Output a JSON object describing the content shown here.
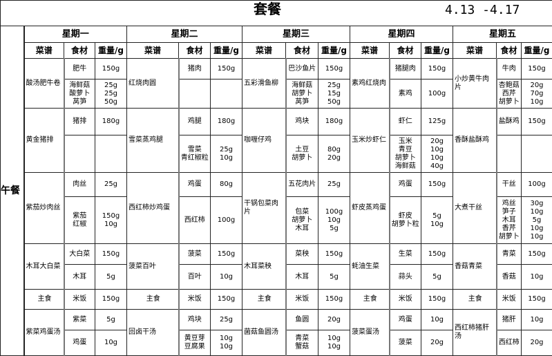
{
  "title": "套餐",
  "date_range": "4.13 -4.17",
  "meal": "午餐",
  "column_headers": {
    "dish": "菜谱",
    "ingredient": "食材",
    "weight": "重量/g"
  },
  "days": [
    {
      "name": "星期一",
      "dishes": [
        {
          "name": "酸汤肥牛卷",
          "items": [
            {
              "ingredient": "肥牛",
              "weight": "150g"
            },
            {
              "ingredient": "海鲜菇\n酸萝卜\n莴笋",
              "weight": "25g\n25g\n50g"
            }
          ]
        },
        {
          "name": "黄金猪排",
          "items": [
            {
              "ingredient": "猪排",
              "weight": "180g"
            },
            {
              "ingredient": "",
              "weight": ""
            }
          ]
        },
        {
          "name": "紫茄炒肉丝",
          "items": [
            {
              "ingredient": "肉丝",
              "weight": "25g"
            },
            {
              "ingredient": "紫茄\n红椒",
              "weight": "150g\n10g"
            }
          ]
        },
        {
          "name": "木耳大白菜",
          "items": [
            {
              "ingredient": "大白菜",
              "weight": "150g"
            },
            {
              "ingredient": "木耳",
              "weight": "5g"
            }
          ]
        },
        {
          "name": "主食",
          "items": [
            {
              "ingredient": "米饭",
              "weight": "150g"
            }
          ]
        },
        {
          "name": "紫菜鸡蛋汤",
          "items": [
            {
              "ingredient": "紫菜",
              "weight": "5g"
            },
            {
              "ingredient": "鸡蛋",
              "weight": "10g"
            }
          ]
        }
      ]
    },
    {
      "name": "星期二",
      "dishes": [
        {
          "name": "红烧肉圆",
          "items": [
            {
              "ingredient": "猪肉",
              "weight": "150g"
            },
            {
              "ingredient": "",
              "weight": ""
            }
          ]
        },
        {
          "name": "雪菜蒸鸡腿",
          "items": [
            {
              "ingredient": "鸡腿",
              "weight": "180g"
            },
            {
              "ingredient": "雪菜\n青红椒粒",
              "weight": "25g\n10g"
            }
          ]
        },
        {
          "name": "西红柿炒鸡蛋",
          "items": [
            {
              "ingredient": "鸡蛋",
              "weight": "80g"
            },
            {
              "ingredient": "西红柿",
              "weight": "100g"
            }
          ]
        },
        {
          "name": "菠菜百叶",
          "items": [
            {
              "ingredient": "菠菜",
              "weight": "150g"
            },
            {
              "ingredient": "百叶",
              "weight": "10g"
            }
          ]
        },
        {
          "name": "主食",
          "items": [
            {
              "ingredient": "米饭",
              "weight": "150g"
            }
          ]
        },
        {
          "name": "回卤干汤",
          "items": [
            {
              "ingredient": "鸡块",
              "weight": "25g"
            },
            {
              "ingredient": "黄豆芽\n豆腐果",
              "weight": "10g\n10g"
            }
          ]
        }
      ]
    },
    {
      "name": "星期三",
      "dishes": [
        {
          "name": "五彩滑鱼柳",
          "items": [
            {
              "ingredient": "巴沙鱼片",
              "weight": "150g"
            },
            {
              "ingredient": "海鲜菇\n胡萝卜\n莴笋",
              "weight": "25g\n15g\n50g"
            }
          ]
        },
        {
          "name": "咖喱仔鸡",
          "items": [
            {
              "ingredient": "鸡块",
              "weight": "180g"
            },
            {
              "ingredient": "土豆\n胡萝卜",
              "weight": "80g\n20g"
            }
          ]
        },
        {
          "name": "干锅包菜肉片",
          "items": [
            {
              "ingredient": "五花肉片",
              "weight": "25g"
            },
            {
              "ingredient": "包菜\n胡萝卜\n木耳",
              "weight": "100g\n10g\n5g"
            }
          ]
        },
        {
          "name": "木耳菜秧",
          "items": [
            {
              "ingredient": "菜秧",
              "weight": "150g"
            },
            {
              "ingredient": "木耳",
              "weight": "5g"
            }
          ]
        },
        {
          "name": "主食",
          "items": [
            {
              "ingredient": "米饭",
              "weight": "150g"
            }
          ]
        },
        {
          "name": "菌菇鱼圆汤",
          "items": [
            {
              "ingredient": "鱼圆",
              "weight": "20g"
            },
            {
              "ingredient": "青菜\n蟹菇",
              "weight": "10g\n10g"
            }
          ]
        }
      ]
    },
    {
      "name": "星期四",
      "dishes": [
        {
          "name": "素鸡红烧肉",
          "items": [
            {
              "ingredient": "猪腿肉",
              "weight": "150g"
            },
            {
              "ingredient": "素鸡",
              "weight": "100g"
            }
          ]
        },
        {
          "name": "玉米炒虾仁",
          "items": [
            {
              "ingredient": "虾仁",
              "weight": "125g"
            },
            {
              "ingredient": "玉米\n青豆\n胡萝卜\n海鲜菇",
              "weight": "20g\n10g\n10g\n40g"
            }
          ]
        },
        {
          "name": "虾皮蒸鸡蛋",
          "items": [
            {
              "ingredient": "鸡蛋",
              "weight": "150g"
            },
            {
              "ingredient": "虾皮\n胡萝卜粒",
              "weight": "5g\n10g"
            }
          ]
        },
        {
          "name": "蚝油生菜",
          "items": [
            {
              "ingredient": "生菜",
              "weight": "150g"
            },
            {
              "ingredient": "蒜头",
              "weight": "5g"
            }
          ]
        },
        {
          "name": "主食",
          "items": [
            {
              "ingredient": "米饭",
              "weight": "150g"
            }
          ]
        },
        {
          "name": "菠菜蛋汤",
          "items": [
            {
              "ingredient": "鸡蛋",
              "weight": "10g"
            },
            {
              "ingredient": "菠菜",
              "weight": "20g"
            }
          ]
        }
      ]
    },
    {
      "name": "星期五",
      "dishes": [
        {
          "name": "小炒黄牛肉片",
          "items": [
            {
              "ingredient": "牛肉",
              "weight": "150g"
            },
            {
              "ingredient": "杏鲍菇\n西芹\n胡萝卜",
              "weight": "20g\n70g\n10g"
            }
          ]
        },
        {
          "name": "香酥盐酥鸡",
          "items": [
            {
              "ingredient": "盐酥鸡",
              "weight": "150g"
            },
            {
              "ingredient": "",
              "weight": ""
            }
          ]
        },
        {
          "name": "大煮干丝",
          "items": [
            {
              "ingredient": "干丝",
              "weight": "100g"
            },
            {
              "ingredient": "鸡丝\n笋子\n木耳\n香芹\n胡萝卜",
              "weight": "30g\n10g\n5g\n10g\n10g"
            }
          ]
        },
        {
          "name": "香菇青菜",
          "items": [
            {
              "ingredient": "青菜",
              "weight": "150g"
            },
            {
              "ingredient": "香菇",
              "weight": "10g"
            }
          ]
        },
        {
          "name": "主食",
          "items": [
            {
              "ingredient": "米饭",
              "weight": "150g"
            }
          ]
        },
        {
          "name": "西红柿猪肝汤",
          "items": [
            {
              "ingredient": "猪肝",
              "weight": "10g"
            },
            {
              "ingredient": "西红柿",
              "weight": "20g"
            }
          ]
        }
      ]
    }
  ]
}
